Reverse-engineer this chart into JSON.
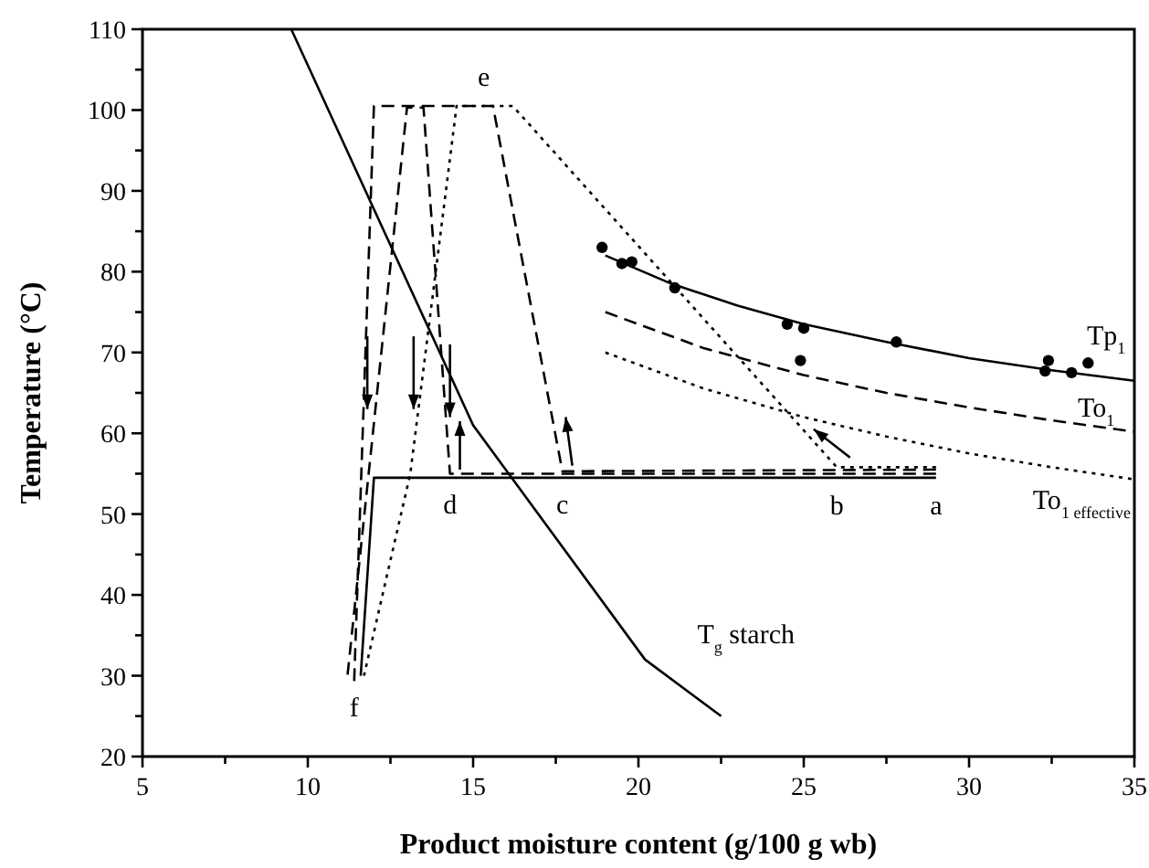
{
  "chart_data": {
    "type": "line",
    "xlabel": "Product moisture content (g/100 g wb)",
    "ylabel": "Temperature (°C)",
    "xlim": [
      5,
      35
    ],
    "ylim": [
      20,
      110
    ],
    "xticks": [
      5,
      {
        "value": 7.5,
        "label": null
      },
      10,
      {
        "value": 12.5,
        "label": null
      },
      15,
      {
        "value": 17.5,
        "label": null
      },
      20,
      {
        "value": 22.5,
        "label": null
      },
      25,
      {
        "value": 27.5,
        "label": null
      },
      30,
      {
        "value": 32.5,
        "label": null
      },
      35
    ],
    "yticks": [
      20,
      {
        "value": 25,
        "label": null
      },
      30,
      {
        "value": 35,
        "label": null
      },
      40,
      {
        "value": 45,
        "label": null
      },
      50,
      {
        "value": 55,
        "label": null
      },
      60,
      {
        "value": 65,
        "label": null
      },
      70,
      {
        "value": 75,
        "label": null
      },
      80,
      {
        "value": 85,
        "label": null
      },
      90,
      {
        "value": 95,
        "label": null
      },
      100,
      {
        "value": 105,
        "label": null
      },
      110
    ],
    "grid": false,
    "marker": "none",
    "series": [
      {
        "color": "#000000",
        "line_style": "solid",
        "x": [
          9.5,
          15,
          20.2,
          22.5
        ],
        "values": [
          110,
          61,
          32,
          25
        ]
      },
      {
        "color": "#000000",
        "line_style": "solid",
        "x": [
          19,
          21,
          23,
          25,
          27.5,
          30,
          32.5,
          35
        ],
        "values": [
          82,
          78.5,
          75.8,
          73.5,
          71.3,
          69.3,
          67.8,
          66.5
        ]
      },
      {
        "color": "#000000",
        "line_style": "dashed",
        "x": [
          19,
          22,
          25,
          27.5,
          30,
          32.5,
          35
        ],
        "values": [
          75,
          70.5,
          67.2,
          65,
          63.2,
          61.6,
          60.2
        ]
      },
      {
        "color": "#000000",
        "line_style": "dotted",
        "x": [
          19,
          22,
          25,
          27.5,
          30,
          32.5,
          35
        ],
        "values": [
          70,
          65.5,
          62,
          59.6,
          57.5,
          55.8,
          54.3
        ]
      },
      {
        "color": "#000000",
        "line_style": "solid",
        "x": [
          29,
          12,
          11.6
        ],
        "values": [
          54.5,
          54.5,
          30
        ]
      },
      {
        "color": "#000000",
        "line_style": "dashed",
        "x": [
          29,
          17.7,
          15.6,
          12,
          11.4
        ],
        "values": [
          55.5,
          55.3,
          100.5,
          100.5,
          29
        ]
      },
      {
        "color": "#000000",
        "line_style": "dotted",
        "x": [
          29,
          26,
          16.2,
          14.5,
          13.1,
          11.7
        ],
        "values": [
          55.8,
          55.8,
          100.5,
          100.5,
          55,
          30
        ]
      },
      {
        "color": "#000000",
        "line_style": "dashed",
        "x": [
          29,
          14.3,
          13.5,
          13,
          11.2
        ],
        "values": [
          55,
          55,
          100.3,
          100.3,
          30
        ]
      },
      {
        "type": "scatter",
        "marker": "circle",
        "color": "#000000",
        "x": [
          18.9,
          19.5,
          19.8,
          21.1,
          24.5,
          25,
          24.9,
          27.8,
          32.3,
          32.4,
          33.1,
          33.6
        ],
        "values": [
          83,
          81,
          81.2,
          78,
          73.5,
          73,
          69,
          71.3,
          67.7,
          69,
          67.5,
          68.7
        ]
      }
    ],
    "annotations": [
      {
        "text": "a",
        "x": 29,
        "y": 54.5
      },
      {
        "text": "b",
        "x": 26,
        "y": 55.8
      },
      {
        "text": "c",
        "x": 17.7,
        "y": 55.3
      },
      {
        "text": "d",
        "x": 14.3,
        "y": 55
      },
      {
        "text": "e",
        "x": 15.6,
        "y": 100.5
      },
      {
        "text": "f",
        "x": 11.4,
        "y": 29
      },
      {
        "text": "Tp$_{1}$",
        "x": 35,
        "y": 66.5
      },
      {
        "text": "To$_{1}$",
        "x": 35,
        "y": 60.2
      },
      {
        "text": "To$_{1 effective}$",
        "x": 35,
        "y": 54.3
      },
      {
        "text": "T$_{g}$ starch",
        "x": 22.5,
        "y": 25
      }
    ]
  }
}
